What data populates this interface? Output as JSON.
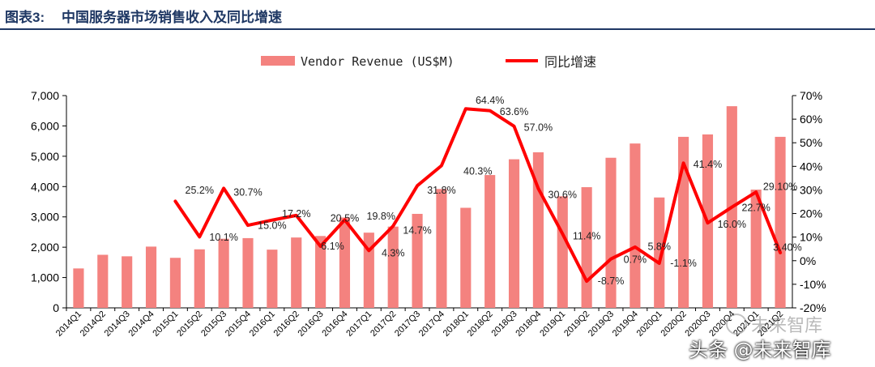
{
  "header": {
    "figure_no": "图表3:",
    "title": "中国服务器市场销售收入及同比增速"
  },
  "colors": {
    "bar": "#f4827f",
    "line": "#ff0000",
    "title": "#1f3864",
    "axis": "#000000",
    "gridline": "#cfcfcf"
  },
  "chart_data": {
    "type": "bar+line",
    "categories": [
      "2014Q1",
      "2014Q2",
      "2014Q3",
      "2014Q4",
      "2015Q1",
      "2015Q2",
      "2015Q3",
      "2015Q4",
      "2016Q1",
      "2016Q2",
      "2016Q3",
      "2016Q4",
      "2017Q1",
      "2017Q2",
      "2017Q3",
      "2017Q4",
      "2018Q1",
      "2018Q2",
      "2018Q3",
      "2018Q4",
      "2019Q1",
      "2019Q2",
      "2019Q3",
      "2019Q4",
      "2020Q1",
      "2020Q2",
      "2020Q3",
      "2020Q4",
      "2021Q1",
      "2021Q2"
    ],
    "series": [
      {
        "name": "Vendor Revenue (US$M)",
        "type": "bar",
        "axis": "left",
        "values": [
          1300,
          1750,
          1700,
          2020,
          1650,
          1930,
          2280,
          2300,
          1920,
          2320,
          2370,
          2980,
          2480,
          2680,
          3100,
          3920,
          3300,
          4380,
          4900,
          5130,
          3680,
          3980,
          4950,
          5420,
          3640,
          5640,
          5720,
          6650,
          3900,
          5640
        ]
      },
      {
        "name": "同比增速",
        "type": "line",
        "axis": "right",
        "values": [
          null,
          null,
          null,
          null,
          25.2,
          10.1,
          30.7,
          15.0,
          17.2,
          19.2,
          6.1,
          17.3,
          4.3,
          14.7,
          31.8,
          40.3,
          64.4,
          63.6,
          57.0,
          30.6,
          11.4,
          -8.7,
          0.7,
          5.8,
          -1.1,
          41.4,
          16.0,
          22.7,
          29.1,
          3.4
        ]
      }
    ],
    "data_labels": [
      {
        "text": "25.2%",
        "i": 5,
        "v": 28.5
      },
      {
        "text": "10.1%",
        "i": 6,
        "v": 8.5
      },
      {
        "text": "30.7%",
        "i": 7,
        "v": 27.5
      },
      {
        "text": "15.0%",
        "i": 8,
        "v": 13.5
      },
      {
        "text": "17.2%",
        "i": 9,
        "v": 18.5
      },
      {
        "text": "6.1%",
        "i": 10.5,
        "v": 4.8
      },
      {
        "text": "20.5%",
        "i": 11,
        "v": 16.5
      },
      {
        "text": "19.8%",
        "i": 12.5,
        "v": 17.5
      },
      {
        "text": "4.3%",
        "i": 13,
        "v": 1.8
      },
      {
        "text": "14.7%",
        "i": 14,
        "v": 11.5
      },
      {
        "text": "31.8%",
        "i": 15,
        "v": 28.5
      },
      {
        "text": "40.3%",
        "i": 16.5,
        "v": 36.5
      },
      {
        "text": "64.4%",
        "i": 17,
        "v": 66.5
      },
      {
        "text": "63.6%",
        "i": 18,
        "v": 61.8
      },
      {
        "text": "57.0%",
        "i": 19,
        "v": 55.0
      },
      {
        "text": "30.6%",
        "i": 20,
        "v": 26.5
      },
      {
        "text": "11.4%",
        "i": 21,
        "v": 9.0
      },
      {
        "text": "-8.7%",
        "i": 22,
        "v": -10.0
      },
      {
        "text": "0.7%",
        "i": 23,
        "v": -1.0
      },
      {
        "text": "5.8%",
        "i": 24,
        "v": 4.5
      },
      {
        "text": "-1.1%",
        "i": 25,
        "v": -2.5
      },
      {
        "text": "41.4%",
        "i": 26,
        "v": 39.5
      },
      {
        "text": "16.0%",
        "i": 27,
        "v": 14.0
      },
      {
        "text": "22.7%",
        "i": 28,
        "v": 21.0
      },
      {
        "text": "29.10%",
        "i": 29,
        "v": 30.0
      },
      {
        "text": "3.40%",
        "i": 29.3,
        "v": 4.2
      }
    ],
    "left_axis": {
      "min": 0,
      "max": 7000,
      "ticks": [
        "0",
        "1,000",
        "2,000",
        "3,000",
        "4,000",
        "5,000",
        "6,000",
        "7,000"
      ]
    },
    "right_axis": {
      "min": -20,
      "max": 70,
      "ticks": [
        "-20%",
        "-10%",
        "0%",
        "10%",
        "20%",
        "30%",
        "40%",
        "50%",
        "60%",
        "70%"
      ]
    },
    "legend": {
      "position": "top-center",
      "items": [
        "Vendor Revenue (US$M)",
        "同比增速"
      ]
    },
    "grid": false
  },
  "watermark": {
    "badge_text": "未来智库",
    "text": "头条 @未来智库"
  }
}
